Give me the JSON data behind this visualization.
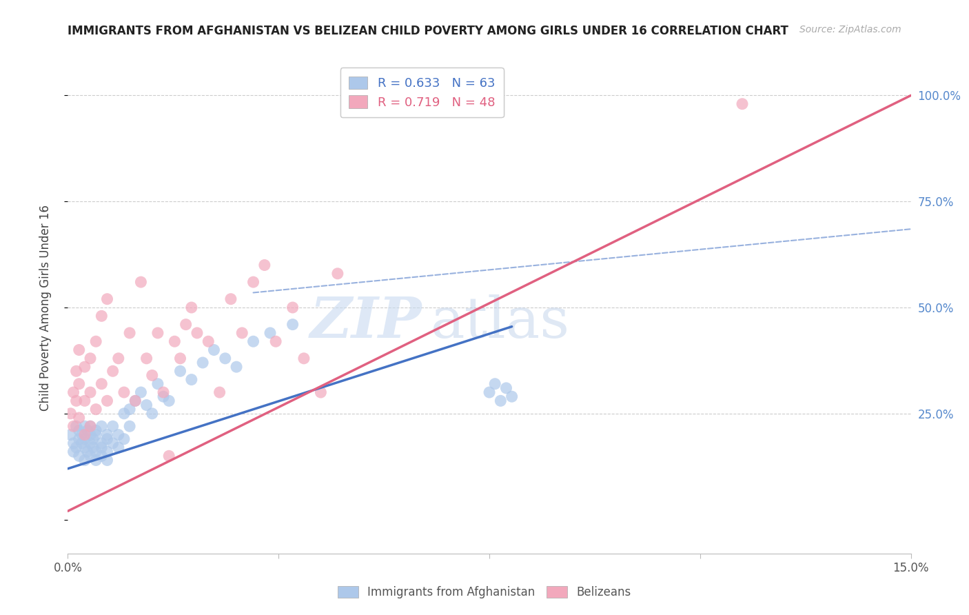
{
  "title": "IMMIGRANTS FROM AFGHANISTAN VS BELIZEAN CHILD POVERTY AMONG GIRLS UNDER 16 CORRELATION CHART",
  "source": "Source: ZipAtlas.com",
  "ylabel": "Child Poverty Among Girls Under 16",
  "xlim": [
    0.0,
    0.15
  ],
  "ylim": [
    -0.08,
    1.08
  ],
  "blue_R": 0.633,
  "blue_N": 63,
  "pink_R": 0.719,
  "pink_N": 48,
  "legend_blue_label": "Immigrants from Afghanistan",
  "legend_pink_label": "Belizeans",
  "watermark_zip": "ZIP",
  "watermark_atlas": "atlas",
  "blue_color": "#adc8ea",
  "blue_line_color": "#4472c4",
  "pink_color": "#f2a8bc",
  "pink_line_color": "#e06080",
  "right_axis_color": "#5588cc",
  "title_color": "#222222",
  "source_color": "#aaaaaa",
  "grid_color": "#cccccc",
  "bottom_label_color": "#555555",
  "blue_scatter_x": [
    0.0005,
    0.001,
    0.001,
    0.0015,
    0.0015,
    0.002,
    0.002,
    0.002,
    0.0025,
    0.0025,
    0.003,
    0.003,
    0.003,
    0.003,
    0.0035,
    0.0035,
    0.004,
    0.004,
    0.004,
    0.004,
    0.0045,
    0.0045,
    0.005,
    0.005,
    0.005,
    0.005,
    0.006,
    0.006,
    0.006,
    0.006,
    0.007,
    0.007,
    0.007,
    0.007,
    0.008,
    0.008,
    0.009,
    0.009,
    0.01,
    0.01,
    0.011,
    0.011,
    0.012,
    0.013,
    0.014,
    0.015,
    0.016,
    0.017,
    0.018,
    0.02,
    0.022,
    0.024,
    0.026,
    0.028,
    0.03,
    0.033,
    0.036,
    0.04,
    0.075,
    0.076,
    0.077,
    0.078,
    0.079
  ],
  "blue_scatter_y": [
    0.2,
    0.18,
    0.16,
    0.22,
    0.17,
    0.19,
    0.15,
    0.21,
    0.18,
    0.2,
    0.17,
    0.22,
    0.14,
    0.19,
    0.16,
    0.21,
    0.18,
    0.2,
    0.15,
    0.22,
    0.17,
    0.19,
    0.16,
    0.21,
    0.14,
    0.2,
    0.18,
    0.22,
    0.17,
    0.15,
    0.19,
    0.16,
    0.2,
    0.14,
    0.18,
    0.22,
    0.17,
    0.2,
    0.25,
    0.19,
    0.22,
    0.26,
    0.28,
    0.3,
    0.27,
    0.25,
    0.32,
    0.29,
    0.28,
    0.35,
    0.33,
    0.37,
    0.4,
    0.38,
    0.36,
    0.42,
    0.44,
    0.46,
    0.3,
    0.32,
    0.28,
    0.31,
    0.29
  ],
  "pink_scatter_x": [
    0.0005,
    0.001,
    0.001,
    0.0015,
    0.0015,
    0.002,
    0.002,
    0.002,
    0.003,
    0.003,
    0.003,
    0.004,
    0.004,
    0.004,
    0.005,
    0.005,
    0.006,
    0.006,
    0.007,
    0.007,
    0.008,
    0.009,
    0.01,
    0.011,
    0.012,
    0.013,
    0.014,
    0.015,
    0.016,
    0.017,
    0.018,
    0.019,
    0.02,
    0.021,
    0.022,
    0.023,
    0.025,
    0.027,
    0.029,
    0.031,
    0.033,
    0.035,
    0.037,
    0.04,
    0.042,
    0.045,
    0.048,
    0.12
  ],
  "pink_scatter_y": [
    0.25,
    0.22,
    0.3,
    0.28,
    0.35,
    0.24,
    0.32,
    0.4,
    0.2,
    0.28,
    0.36,
    0.22,
    0.3,
    0.38,
    0.26,
    0.42,
    0.32,
    0.48,
    0.28,
    0.52,
    0.35,
    0.38,
    0.3,
    0.44,
    0.28,
    0.56,
    0.38,
    0.34,
    0.44,
    0.3,
    0.15,
    0.42,
    0.38,
    0.46,
    0.5,
    0.44,
    0.42,
    0.3,
    0.52,
    0.44,
    0.56,
    0.6,
    0.42,
    0.5,
    0.38,
    0.3,
    0.58,
    0.98
  ],
  "blue_line_x0": 0.0,
  "blue_line_y0": 0.12,
  "blue_line_x1": 0.079,
  "blue_line_y1": 0.455,
  "pink_line_x0": 0.0,
  "pink_line_y0": 0.02,
  "pink_line_x1": 0.15,
  "pink_line_y1": 1.0,
  "dash_line_x0": 0.033,
  "dash_line_y0": 0.535,
  "dash_line_x1": 0.15,
  "dash_line_y1": 0.685
}
